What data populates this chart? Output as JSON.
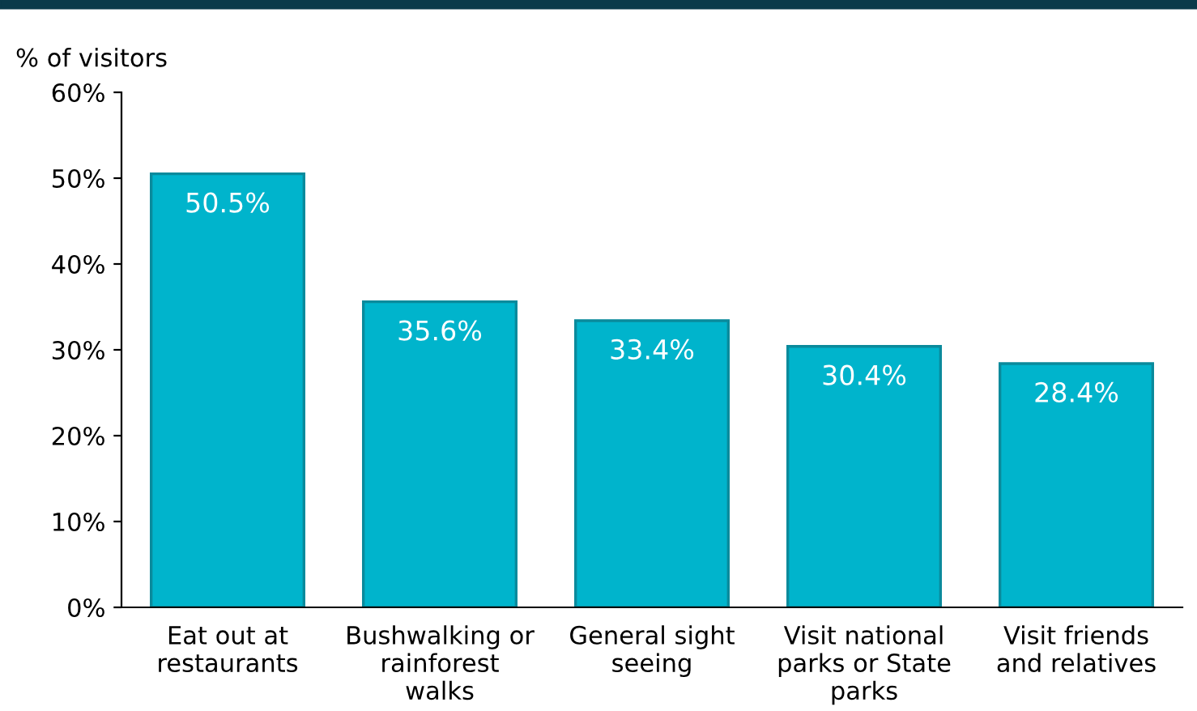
{
  "chart_data": {
    "type": "bar",
    "ylabel": "% of visitors",
    "categories": [
      "Eat out at\nrestaurants",
      "Bushwalking or\nrainforest\nwalks",
      "General sight\nseeing",
      "Visit national\nparks or State\nparks",
      "Visit friends\nand relatives"
    ],
    "values": [
      50.5,
      35.6,
      33.4,
      30.4,
      28.4
    ],
    "value_labels": [
      "50.5%",
      "35.6%",
      "33.4%",
      "30.4%",
      "28.4%"
    ],
    "color": "#00b4cc",
    "ylim": [
      0,
      60
    ],
    "yticks": [
      {
        "value": 0,
        "label": "0%"
      },
      {
        "value": 10,
        "label": "10%"
      },
      {
        "value": 20,
        "label": "20%"
      },
      {
        "value": 30,
        "label": "30%"
      },
      {
        "value": 40,
        "label": "40%"
      },
      {
        "value": 50,
        "label": "50%"
      },
      {
        "value": 60,
        "label": "60%"
      }
    ],
    "grid": false
  }
}
